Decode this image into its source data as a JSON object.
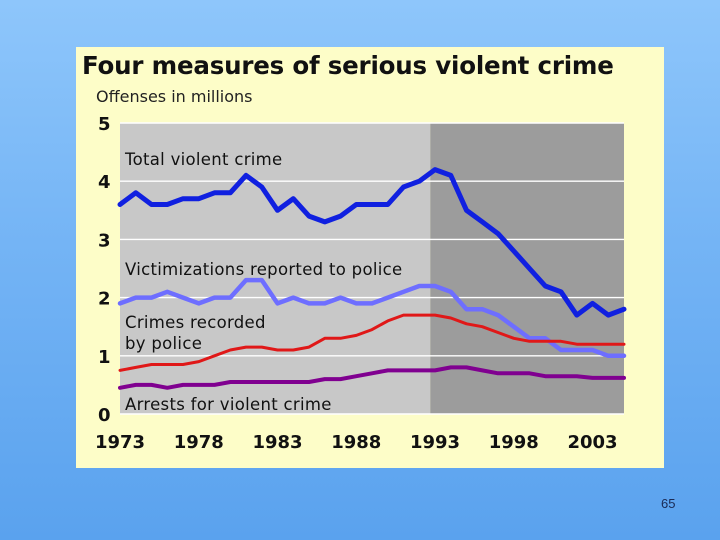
{
  "page_number": "65",
  "chart_data": {
    "type": "line",
    "title": "Four measures of serious violent crime",
    "ylabel": "Offenses in millions",
    "xlabel": "",
    "x": [
      1973,
      1974,
      1975,
      1976,
      1977,
      1978,
      1979,
      1980,
      1981,
      1982,
      1983,
      1984,
      1985,
      1986,
      1987,
      1988,
      1989,
      1990,
      1991,
      1992,
      1993,
      1994,
      1995,
      1996,
      1997,
      1998,
      1999,
      2000,
      2001,
      2002,
      2003,
      2004,
      2005
    ],
    "xlim": [
      1973,
      2005
    ],
    "ylim": [
      0,
      5
    ],
    "yticks": [
      "0",
      "1",
      "2",
      "3",
      "4",
      "5"
    ],
    "xticks": [
      "1973",
      "1978",
      "1983",
      "1988",
      "1993",
      "1998",
      "2003"
    ],
    "shaded_region_start": 1992.7,
    "grid": "horizontal",
    "series": [
      {
        "name": "Total violent crime",
        "color": "#1020e0",
        "values": [
          3.6,
          3.8,
          3.6,
          3.6,
          3.7,
          3.7,
          3.8,
          3.8,
          4.1,
          3.9,
          3.5,
          3.7,
          3.4,
          3.3,
          3.4,
          3.6,
          3.6,
          3.6,
          3.9,
          4.0,
          4.2,
          4.1,
          3.5,
          3.3,
          3.1,
          2.8,
          2.5,
          2.2,
          2.1,
          1.7,
          1.9,
          1.7,
          1.8
        ]
      },
      {
        "name": "Victimizations reported to police",
        "color": "#6e6eff",
        "values": [
          1.9,
          2.0,
          2.0,
          2.1,
          2.0,
          1.9,
          2.0,
          2.0,
          2.3,
          2.3,
          1.9,
          2.0,
          1.9,
          1.9,
          2.0,
          1.9,
          1.9,
          2.0,
          2.1,
          2.2,
          2.2,
          2.1,
          1.8,
          1.8,
          1.7,
          1.5,
          1.3,
          1.3,
          1.1,
          1.1,
          1.1,
          1.0,
          1.0
        ]
      },
      {
        "name": "Crimes recorded by police",
        "color": "#e01818",
        "values": [
          0.75,
          0.8,
          0.85,
          0.85,
          0.85,
          0.9,
          1.0,
          1.1,
          1.15,
          1.15,
          1.1,
          1.1,
          1.15,
          1.3,
          1.3,
          1.35,
          1.45,
          1.6,
          1.7,
          1.7,
          1.7,
          1.65,
          1.55,
          1.5,
          1.4,
          1.3,
          1.25,
          1.25,
          1.25,
          1.2,
          1.2,
          1.2,
          1.2
        ]
      },
      {
        "name": "Arrests for violent crime",
        "color": "#800090",
        "values": [
          0.45,
          0.5,
          0.5,
          0.45,
          0.5,
          0.5,
          0.5,
          0.55,
          0.55,
          0.55,
          0.55,
          0.55,
          0.55,
          0.6,
          0.6,
          0.65,
          0.7,
          0.75,
          0.75,
          0.75,
          0.75,
          0.8,
          0.8,
          0.75,
          0.7,
          0.7,
          0.7,
          0.65,
          0.65,
          0.65,
          0.62,
          0.62,
          0.62
        ]
      }
    ],
    "series_labels": [
      {
        "lines": [
          "Total violent crime"
        ]
      },
      {
        "lines": [
          "Victimizations reported to police"
        ]
      },
      {
        "lines": [
          "Crimes recorded",
          "by police"
        ]
      },
      {
        "lines": [
          "Arrests for violent crime"
        ]
      }
    ]
  }
}
